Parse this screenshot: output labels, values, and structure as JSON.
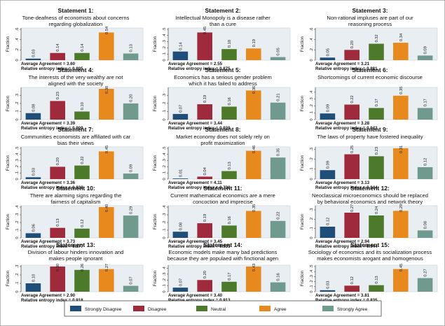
{
  "colors": {
    "strongly_disagree": "#1f4e79",
    "disagree": "#9e2a3b",
    "neutral": "#4d7a2a",
    "agree": "#e8891e",
    "strongly_agree": "#6f9a8d",
    "panel_bg": "#e9eef3"
  },
  "chart_data": [
    {
      "type": "bar",
      "title": "Statement 1:",
      "subtitle_lines": [
        "Tone-deafness of economists about concerns",
        "regarding globalization"
      ],
      "ylabel": "Fraction",
      "yticks": [
        "0",
        ".2",
        ".4",
        ".6"
      ],
      "ylim": [
        0,
        0.6
      ],
      "values": [
        0.03,
        0.14,
        0.14,
        0.54,
        0.13
      ],
      "value_labels": [
        "0.03",
        "0.14",
        "0.14",
        "0.54",
        "0.13"
      ],
      "stats": [
        "Average Agreement = 3.60",
        "Relative entropy index = 0.805"
      ]
    },
    {
      "type": "bar",
      "title": "Statement 2:",
      "subtitle_lines": [
        "Intellectual Monopoly is a disease rather",
        "than a cure"
      ],
      "ylabel": "Fraction",
      "yticks": [
        "0",
        ".1",
        ".2",
        ".3",
        ".4",
        ".5"
      ],
      "ylim": [
        0,
        0.5
      ],
      "values": [
        0.14,
        0.45,
        0.18,
        0.19,
        0.05
      ],
      "value_labels": [
        "0.14",
        "0.45",
        "0.18",
        "0.19",
        "0.05"
      ],
      "stats": [
        "Average Agreement = 2.55",
        "Relative entropy index = 0.875"
      ]
    },
    {
      "type": "bar",
      "title": "Statement 3:",
      "subtitle_lines": [
        "Non-rational impluses are part of our",
        "reasoning process"
      ],
      "ylabel": "Fraction",
      "yticks": [
        "0",
        ".2",
        ".4",
        ".6"
      ],
      "ylim": [
        0,
        0.6
      ],
      "values": [
        0.05,
        0.2,
        0.32,
        0.34,
        0.09
      ],
      "value_labels": [
        "0.05",
        "0.20",
        "0.32",
        "0.34",
        "0.09"
      ],
      "stats": [
        "Average Agreement = 3.21",
        "Relative entropy index = 0.881"
      ]
    },
    {
      "type": "bar",
      "title": "Statement 4:",
      "subtitle_lines": [
        "The interests of the very wealthy are not",
        "aligned with the society"
      ],
      "ylabel": "Fraction",
      "yticks": [
        "0",
        ".1",
        ".2",
        ".3"
      ],
      "ylim": [
        0,
        0.38
      ],
      "values": [
        0.08,
        0.23,
        0.1,
        0.38,
        0.2
      ],
      "value_labels": [
        "0.08",
        "0.23",
        "0.10",
        "0.38",
        "0.20"
      ],
      "stats": [
        "Average Agreement = 3.39",
        "Relative entropy index = 0.909"
      ]
    },
    {
      "type": "bar",
      "title": "Statement 5:",
      "subtitle_lines": [
        "Economics has a serious gender problem",
        "which it has failed to address"
      ],
      "ylabel": "Fraction",
      "yticks": [
        "0",
        ".1",
        ".2",
        ".3"
      ],
      "ylim": [
        0,
        0.38
      ],
      "values": [
        0.07,
        0.19,
        0.16,
        0.36,
        0.21
      ],
      "value_labels": [
        "0.07",
        "0.19",
        "0.16",
        "0.36",
        "0.21"
      ],
      "stats": [
        "Average Agreement = 3.44",
        "Relative entropy index = 0.939"
      ]
    },
    {
      "type": "bar",
      "title": "Statement 6:",
      "subtitle_lines": [
        "Shortcomings of current economic discourse"
      ],
      "ylabel": "Fraction",
      "yticks": [
        "0",
        ".1",
        ".2",
        ".3",
        ".4"
      ],
      "ylim": [
        0,
        0.45
      ],
      "values": [
        0.09,
        0.22,
        0.17,
        0.35,
        0.17
      ],
      "value_labels": [
        "0.09",
        "0.22",
        "0.17",
        "0.35",
        "0.17"
      ],
      "stats": [
        "Average Agreement = 3.28",
        "Relative entropy index = 0.942"
      ]
    },
    {
      "type": "bar",
      "title": "Statement 7:",
      "subtitle_lines": [
        "Communities economists are affiliated with car",
        "bias their views"
      ],
      "ylabel": "Fraction",
      "yticks": [
        "0",
        ".1",
        ".2",
        ".3",
        ".4",
        ".5"
      ],
      "ylim": [
        0,
        0.5
      ],
      "values": [
        0.03,
        0.2,
        0.22,
        0.45,
        0.09
      ],
      "value_labels": [
        "0.03",
        "0.20",
        "0.22",
        "0.45",
        "0.09"
      ],
      "stats": [
        "Average Agreement = 3.36",
        "Relative entropy index = 0.838"
      ]
    },
    {
      "type": "bar",
      "title": "Statement 8:",
      "subtitle_lines": [
        "Market economy does not solely rely on",
        "profit maximization"
      ],
      "ylabel": "Fraction",
      "yticks": [
        "0",
        ".1",
        ".2",
        ".3",
        ".4",
        ".5"
      ],
      "ylim": [
        0,
        0.5
      ],
      "values": [
        0.01,
        0.04,
        0.13,
        0.46,
        0.35
      ],
      "value_labels": [
        "0.01",
        "0.04",
        "0.13",
        "0.46",
        "0.35"
      ],
      "stats": [
        "Average Agreement = 4.11",
        "Relative entropy index = 0.720"
      ]
    },
    {
      "type": "bar",
      "title": "Statement 9:",
      "subtitle_lines": [
        "The laws of property have fostered inequality"
      ],
      "ylabel": "Fraction",
      "yticks": [
        "0",
        ".1",
        ".2",
        ".3"
      ],
      "ylim": [
        0,
        0.31
      ],
      "values": [
        0.09,
        0.25,
        0.23,
        0.31,
        0.12
      ],
      "value_labels": [
        "0.09",
        "0.25",
        "0.23",
        "0.31",
        "0.12"
      ],
      "stats": [
        "Average Agreement = 3.13",
        "Relative entropy index = 0.944"
      ]
    },
    {
      "type": "bar",
      "title": "Statement 10:",
      "subtitle_lines": [
        "There are alarming signs regarding the",
        "fairness of capitalism"
      ],
      "ylabel": "Fraction",
      "yticks": [
        "0",
        ".1",
        ".2",
        ".3",
        ".4"
      ],
      "ylim": [
        0,
        0.4
      ],
      "values": [
        0.06,
        0.13,
        0.12,
        0.4,
        0.29
      ],
      "value_labels": [
        "0.06",
        "0.13",
        "0.12",
        "0.40",
        "0.29"
      ],
      "stats": [
        "Average Agreement = 3.73",
        "Relative entropy index = 0.877"
      ]
    },
    {
      "type": "bar",
      "title": "Statement 11:",
      "subtitle_lines": [
        "Current mathematical economics are a mere",
        "concoction and imprecise"
      ],
      "ylabel": "Fraction",
      "yticks": [
        "0",
        ".1",
        ".2",
        ".3",
        ".4"
      ],
      "ylim": [
        0,
        0.4
      ],
      "values": [
        0.08,
        0.19,
        0.16,
        0.35,
        0.22
      ],
      "value_labels": [
        "0.08",
        "0.19",
        "0.16",
        "0.35",
        "0.22"
      ],
      "stats": [
        "Average Agreement = 3.45",
        "Relative entropy index = 0.935"
      ]
    },
    {
      "type": "bar",
      "title": "Statement 12:",
      "subtitle_lines": [
        "Neoclassical microeconomics should be replaced",
        "by behavioral economics and network theory"
      ],
      "ylabel": "Fraction",
      "yticks": [
        "0",
        ".1",
        ".2",
        ".3"
      ],
      "ylim": [
        0,
        0.33
      ],
      "values": [
        0.12,
        0.27,
        0.24,
        0.29,
        0.08
      ],
      "value_labels": [
        "0.12",
        "0.27",
        "0.24",
        "0.29",
        "0.08"
      ],
      "stats": [
        "Average Agreement = 2.94",
        "Relative entropy index = 0.944"
      ]
    },
    {
      "type": "bar",
      "title": "Statement 13:",
      "subtitle_lines": [
        "Division of labour hinders innovation and",
        "makes people ignorant"
      ],
      "ylabel": "Fraction",
      "yticks": [
        "0",
        ".1",
        ".2",
        ".3"
      ],
      "ylim": [
        0,
        0.3
      ],
      "values": [
        0.1,
        0.3,
        0.26,
        0.27,
        0.07
      ],
      "value_labels": [
        "0.10",
        "0.30",
        "0.26",
        "0.27",
        "0.07"
      ],
      "stats": [
        "Average Agreement = 2.90",
        "Relative entropy index = 0.918"
      ]
    },
    {
      "type": "bar",
      "title": "Statement 14:",
      "subtitle_lines": [
        "Economic models make many bad predictions",
        "because they are populaed with finctional agen"
      ],
      "ylabel": "Fraction",
      "yticks": [
        "0",
        ".1",
        ".2",
        ".3",
        ".4"
      ],
      "ylim": [
        0,
        0.43
      ],
      "values": [
        0.07,
        0.2,
        0.17,
        0.43,
        0.16
      ],
      "value_labels": [
        "0.07",
        "0.20",
        "0.17",
        "0.43",
        "0.16"
      ],
      "stats": [
        "Average Agreement = 3.40",
        "Relative entropy index = 0.913"
      ]
    },
    {
      "type": "bar",
      "title": "Statement 15:",
      "subtitle_lines": [
        "Sociology of economics and its socialization process",
        "makes economists arogant and homogenous"
      ],
      "ylabel": "Fraction",
      "yticks": [
        "0",
        ".1",
        ".2",
        ".3",
        ".4",
        ".5"
      ],
      "ylim": [
        0,
        0.5
      ],
      "values": [
        0.03,
        0.12,
        0.13,
        0.45,
        0.27
      ],
      "value_labels": [
        "0.03",
        "0.12",
        "0.13",
        "0.45",
        "0.27"
      ],
      "stats": [
        "Average Agreement = 3.81",
        "Relative entropy index = 0.835"
      ]
    }
  ],
  "legend": {
    "placement": "bottom",
    "items": [
      {
        "label": "Strongly Disagree",
        "color_key": "strongly_disagree"
      },
      {
        "label": "Disagree",
        "color_key": "disagree"
      },
      {
        "label": "Neutral",
        "color_key": "neutral"
      },
      {
        "label": "Agree",
        "color_key": "agree"
      },
      {
        "label": "Strongly Agree",
        "color_key": "strongly_agree"
      }
    ]
  }
}
